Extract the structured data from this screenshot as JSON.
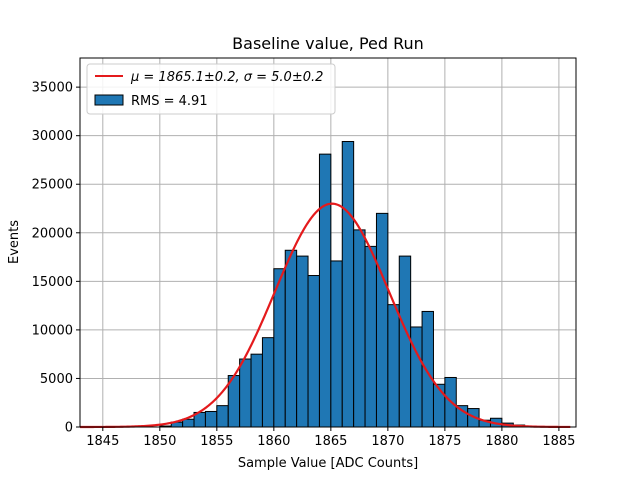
{
  "chart_data": {
    "type": "bar",
    "title": "Baseline value, Ped Run",
    "xlabel": "Sample Value [ADC Counts]",
    "ylabel": "Events",
    "xlim": [
      1843,
      1886.5
    ],
    "ylim": [
      0,
      38000
    ],
    "xticks": [
      1845,
      1850,
      1855,
      1860,
      1865,
      1870,
      1875,
      1880,
      1885
    ],
    "yticks": [
      0,
      5000,
      10000,
      15000,
      20000,
      25000,
      30000,
      35000
    ],
    "grid": true,
    "legend_position": "upper-left",
    "histogram": {
      "name": "RMS = 4.91",
      "color": "#1f77b4",
      "edgecolor": "#000000",
      "bin_start": 1850,
      "bin_width": 1,
      "counts": [
        100,
        500,
        800,
        1500,
        1600,
        2200,
        5300,
        7000,
        7500,
        9200,
        16300,
        18200,
        17600,
        15600,
        28100,
        17100,
        29400,
        20300,
        18600,
        22000,
        12600,
        17600,
        10300,
        11900,
        4400,
        5100,
        2200,
        1900,
        700,
        900,
        400,
        200
      ]
    },
    "fit": {
      "name": "$\\mu=$1865.1±0.2, $\\sigma=$5.0±0.2",
      "color": "#e41a1c",
      "mu": 1865.1,
      "sigma": 5.0,
      "amplitude": 23000,
      "x_range": [
        1843,
        1886
      ]
    }
  },
  "legend": {
    "fit_prefix": "μ = 1865.1±0.2, ",
    "fit_suffix": "σ = 5.0±0.2",
    "hist_label": "RMS = 4.91"
  }
}
